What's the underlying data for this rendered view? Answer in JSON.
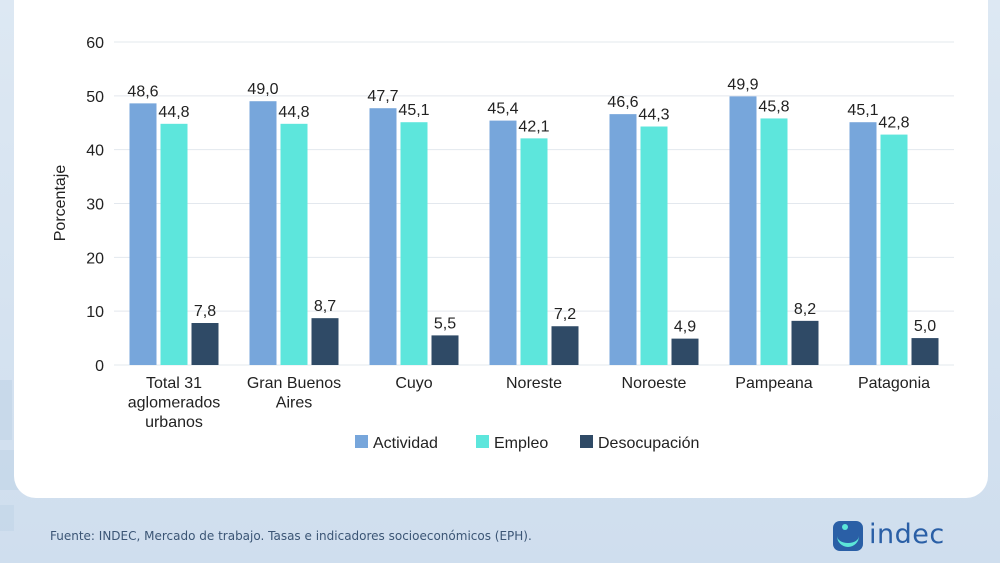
{
  "chart_data": {
    "type": "bar",
    "ylabel": "Porcentaje",
    "ylim": [
      0,
      60
    ],
    "yticks": [
      0,
      10,
      20,
      30,
      40,
      50,
      60
    ],
    "grid": true,
    "legend_position": "bottom",
    "categories": [
      [
        "Total 31",
        "aglomerados",
        "urbanos"
      ],
      [
        "Gran Buenos",
        "Aires"
      ],
      [
        "Cuyo"
      ],
      [
        "Noreste"
      ],
      [
        "Noroeste"
      ],
      [
        "Pampeana"
      ],
      [
        "Patagonia"
      ]
    ],
    "series": [
      {
        "name": "Actividad",
        "color": "#77a6db",
        "values": [
          48.6,
          49.0,
          47.7,
          45.4,
          46.6,
          49.9,
          45.1
        ],
        "labels": [
          "48,6",
          "49,0",
          "47,7",
          "45,4",
          "46,6",
          "49,9",
          "45,1"
        ]
      },
      {
        "name": "Empleo",
        "color": "#5de6dc",
        "values": [
          44.8,
          44.8,
          45.1,
          42.1,
          44.3,
          45.8,
          42.8
        ],
        "labels": [
          "44,8",
          "44,8",
          "45,1",
          "42,1",
          "44,3",
          "45,8",
          "42,8"
        ]
      },
      {
        "name": "Desocupación",
        "color": "#2f4a66",
        "values": [
          7.8,
          8.7,
          5.5,
          7.2,
          4.9,
          8.2,
          5.0
        ],
        "labels": [
          "7,8",
          "8,7",
          "5,5",
          "7,2",
          "4,9",
          "8,2",
          "5,0"
        ]
      }
    ]
  },
  "footer": {
    "source": "Fuente: INDEC, Mercado de trabajo. Tasas e indicadores socioeconómicos (EPH)."
  },
  "logo": {
    "text": "indec",
    "icon": "indec-logo-icon"
  }
}
